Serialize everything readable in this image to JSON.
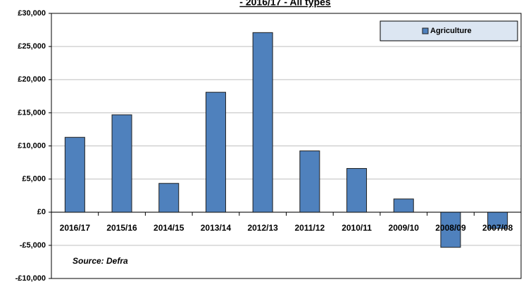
{
  "chart_data": {
    "type": "bar",
    "title": "- 2016/17 - All types",
    "categories": [
      "2016/17",
      "2015/16",
      "2014/15",
      "2013/14",
      "2012/13",
      "2011/12",
      "2010/11",
      "2009/10",
      "2008/09",
      "2007/08"
    ],
    "series": [
      {
        "name": "Agriculture",
        "color": "#4f81bd",
        "values": [
          11300,
          14700,
          4350,
          18100,
          27100,
          9250,
          6600,
          2000,
          -5300,
          -2450
        ]
      }
    ],
    "ylim": [
      -10000,
      30000
    ],
    "yticks": [
      {
        "value": -10000,
        "label": "-£10,000"
      },
      {
        "value": -5000,
        "label": "-£5,000"
      },
      {
        "value": 0,
        "label": "£0"
      },
      {
        "value": 5000,
        "label": "£5,000"
      },
      {
        "value": 10000,
        "label": "£10,000"
      },
      {
        "value": 15000,
        "label": "£15,000"
      },
      {
        "value": 20000,
        "label": "£20,000"
      },
      {
        "value": 25000,
        "label": "£25,000"
      },
      {
        "value": 30000,
        "label": "£30,000"
      }
    ],
    "grid": true,
    "legend": "upper right",
    "annotation": "Source: Defra"
  }
}
